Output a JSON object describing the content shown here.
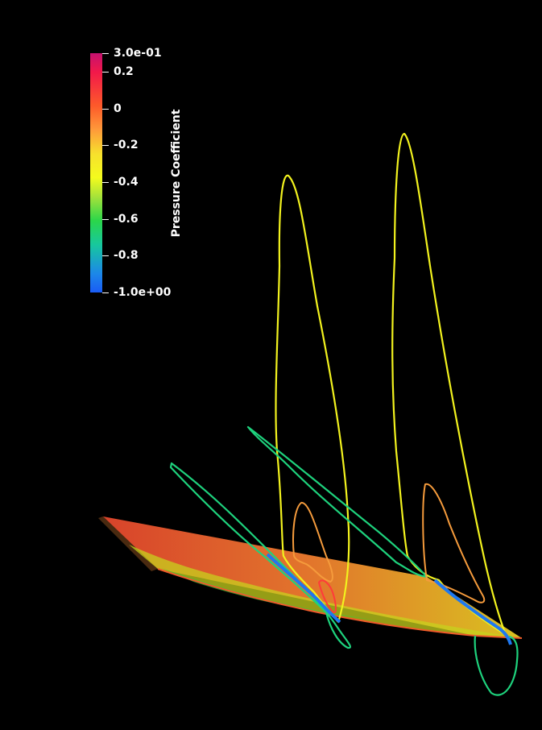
{
  "colorbar": {
    "title": "Pressure Coefficient",
    "range": [
      -1.0,
      0.3
    ],
    "ticks": [
      {
        "label": "3.0e-01",
        "value": 0.3
      },
      {
        "label": "0.2",
        "value": 0.2
      },
      {
        "label": "0",
        "value": 0.0
      },
      {
        "label": "-0.2",
        "value": -0.2
      },
      {
        "label": "-0.4",
        "value": -0.4
      },
      {
        "label": "-0.6",
        "value": -0.6
      },
      {
        "label": "-0.8",
        "value": -0.8
      },
      {
        "label": "-1.0e+00",
        "value": -1.0
      }
    ],
    "colors": {
      "max": "#c5116f",
      "high": "#f2194a",
      "mid_high": "#fe9a3a",
      "mid": "#f4fb1d",
      "mid_low": "#2bd64a",
      "low": "#1a5cf6"
    }
  },
  "scene": {
    "background": "#000000",
    "surface": "wing",
    "contour_colors": {
      "yellow": "#f2f21e",
      "green": "#1ed27d",
      "orange": "#f59b3c",
      "red": "#ff3a3a",
      "blue": "#1e78f0"
    }
  }
}
